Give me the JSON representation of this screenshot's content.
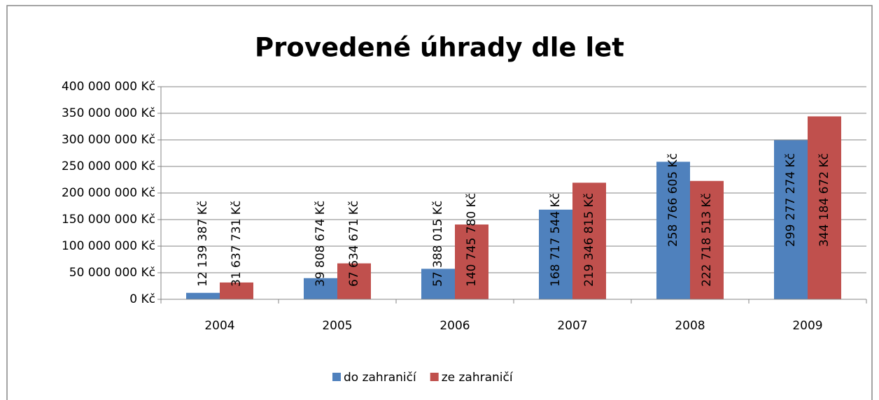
{
  "chart_data": {
    "type": "bar",
    "title": "Provedené úhrady dle let",
    "categories": [
      "2004",
      "2005",
      "2006",
      "2007",
      "2008",
      "2009"
    ],
    "series": [
      {
        "name": "do zahraničí",
        "color": "#4f81bd",
        "values": [
          12139387,
          39808674,
          57388015,
          168717544,
          258766605,
          299277274
        ],
        "value_labels": [
          "12 139 387 Kč",
          "39 808 674 Kč",
          "57 388 015 Kč",
          "168 717 544 Kč",
          "258 766 605 Kč",
          "299 277 274 Kč"
        ]
      },
      {
        "name": "ze zahraničí",
        "color": "#c0504d",
        "values": [
          31637731,
          67634671,
          140745780,
          219346815,
          222718513,
          344184672
        ],
        "value_labels": [
          "31 637 731 Kč",
          "67 634 671 Kč",
          "140 745 780 Kč",
          "219 346 815 Kč",
          "222 718 513 Kč",
          "344 184 672 Kč"
        ]
      }
    ],
    "ylim": [
      0,
      400000000
    ],
    "yticks": [
      {
        "value": 0,
        "label": "0 Kč"
      },
      {
        "value": 50000000,
        "label": "50 000 000 Kč"
      },
      {
        "value": 100000000,
        "label": "100 000 000 Kč"
      },
      {
        "value": 150000000,
        "label": "150 000 000 Kč"
      },
      {
        "value": 200000000,
        "label": "200 000 000 Kč"
      },
      {
        "value": 250000000,
        "label": "250 000 000 Kč"
      },
      {
        "value": 300000000,
        "label": "300 000 000 Kč"
      },
      {
        "value": 350000000,
        "label": "350 000 000 Kč"
      },
      {
        "value": 400000000,
        "label": "400 000 000 Kč"
      }
    ],
    "grid": true,
    "legend": "bottom"
  }
}
